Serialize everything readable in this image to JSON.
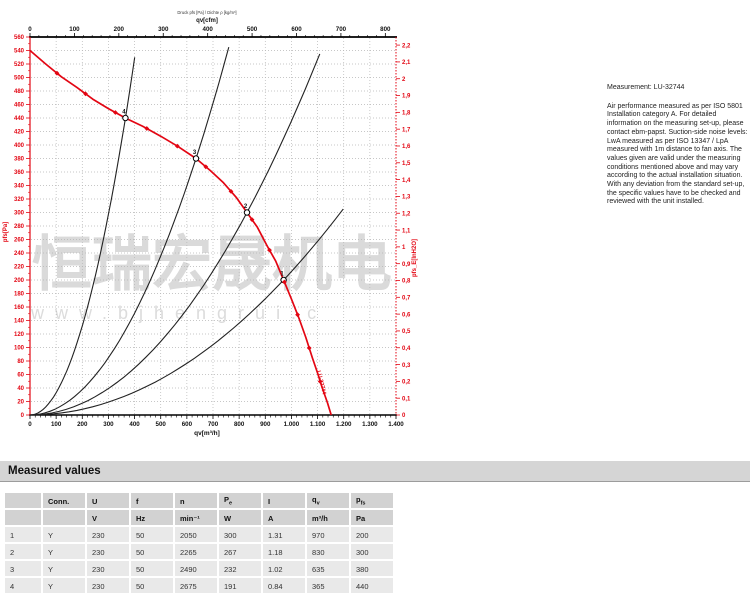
{
  "accent_red": "#e30613",
  "chart": {
    "title_small": "Druck pfs [Pa] / Dichte ρ [kg/m³]",
    "axis_top_label": "qv[cfm]",
    "axis_bottom_label": "qv[m³/h]",
    "axis_left_label": "pfs[Pa]",
    "axis_right_label": "pfs_E[InH2O]"
  },
  "chart_data": {
    "type": "line",
    "title": "Air performance curve pfs = f(qv)",
    "xlabel": "qv[m³/h]",
    "xlabel_top": "qv[cfm]",
    "ylabel": "pfs[Pa]",
    "ylabel_right": "pfs_E[InH2O]",
    "x_range_m3h": [
      0,
      1400
    ],
    "x_range_cfm": [
      0,
      800
    ],
    "y_range_pa": [
      0,
      560
    ],
    "y_range_inh2o": [
      0,
      2.2
    ],
    "grid": true,
    "curve_label": "LU-32744",
    "fan_curve_points_qv_pa": [
      [
        0,
        540
      ],
      [
        60,
        520
      ],
      [
        120,
        501
      ],
      [
        180,
        485
      ],
      [
        240,
        468
      ],
      [
        300,
        454
      ],
      [
        365,
        440
      ],
      [
        430,
        428
      ],
      [
        500,
        413
      ],
      [
        565,
        398
      ],
      [
        635,
        380
      ],
      [
        690,
        362
      ],
      [
        740,
        344
      ],
      [
        790,
        322
      ],
      [
        830,
        300
      ],
      [
        870,
        278
      ],
      [
        905,
        252
      ],
      [
        940,
        228
      ],
      [
        970,
        200
      ],
      [
        1000,
        172
      ],
      [
        1030,
        142
      ],
      [
        1055,
        115
      ],
      [
        1080,
        85
      ],
      [
        1100,
        62
      ],
      [
        1118,
        40
      ],
      [
        1138,
        18
      ],
      [
        1152,
        0
      ]
    ],
    "operating_points": [
      {
        "label": "1",
        "qv": 970,
        "pfs": 200
      },
      {
        "label": "2",
        "qv": 830,
        "pfs": 300
      },
      {
        "label": "3",
        "qv": 635,
        "pfs": 380
      },
      {
        "label": "4",
        "qv": 365,
        "pfs": 440
      }
    ],
    "load_curves": [
      {
        "through_point": "1",
        "p_end": 305
      },
      {
        "through_point": "2",
        "p_end": 535
      },
      {
        "through_point": "3",
        "p_end": 545
      },
      {
        "through_point": "4",
        "p_end": 530
      }
    ]
  },
  "watermark": {
    "text_cn": "恒瑞宏晟机电",
    "text_url": "www.bjhengrui.c"
  },
  "note": {
    "title": "Measurement: LU-32744",
    "body": "Air performance measured as per ISO 5801 Installation category A. For detailed information on the measuring set-up, please contact ebm-papst. Suction-side noise levels: LwA measured as per ISO 13347 / LpA measured with 1m distance to fan axis. The values given are valid under the measuring conditions mentioned above and may vary according to the actual installation situation. With any deviation from the standard set-up, the specific values have to be checked and reviewed with the unit installed."
  },
  "measured_values": {
    "section_title": "Measured values",
    "columns": [
      {
        "label": "",
        "sub": "",
        "unit": ""
      },
      {
        "label": "Conn.",
        "sub": "",
        "unit": ""
      },
      {
        "label": "U",
        "sub": "",
        "unit": "V"
      },
      {
        "label": "f",
        "sub": "",
        "unit": "Hz"
      },
      {
        "label": "n",
        "sub": "",
        "unit": "min⁻¹"
      },
      {
        "label": "P",
        "sub": "e",
        "unit": "W"
      },
      {
        "label": "I",
        "sub": "",
        "unit": "A"
      },
      {
        "label": "q",
        "sub": "v",
        "unit": "m³/h"
      },
      {
        "label": "p",
        "sub": "fs",
        "unit": "Pa"
      }
    ],
    "rows": [
      [
        "1",
        "Y",
        "230",
        "50",
        "2050",
        "300",
        "1.31",
        "970",
        "200"
      ],
      [
        "2",
        "Y",
        "230",
        "50",
        "2265",
        "267",
        "1.18",
        "830",
        "300"
      ],
      [
        "3",
        "Y",
        "230",
        "50",
        "2490",
        "232",
        "1.02",
        "635",
        "380"
      ],
      [
        "4",
        "Y",
        "230",
        "50",
        "2675",
        "191",
        "0.84",
        "365",
        "440"
      ]
    ]
  }
}
